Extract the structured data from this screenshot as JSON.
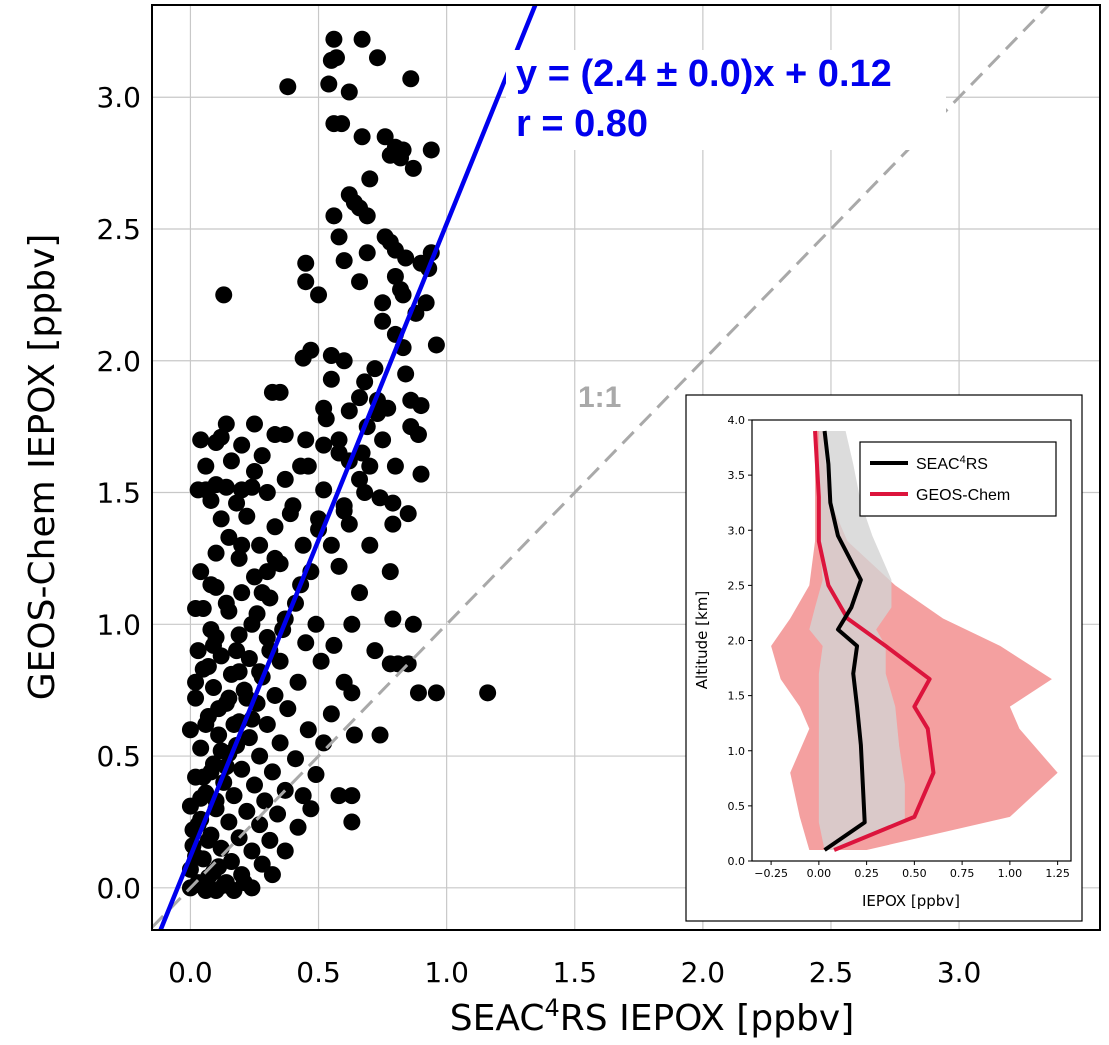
{
  "chart_data": [
    {
      "type": "scatter",
      "xlabel_main": "SEAC",
      "xlabel_sup": "4",
      "xlabel_rest": "RS IEPOX [ppbv]",
      "ylabel": "GEOS-Chem IEPOX [ppbv]",
      "xlim": [
        -0.15,
        3.55
      ],
      "ylim": [
        -0.16,
        3.35
      ],
      "xticks": [
        "0.0",
        "0.5",
        "1.0",
        "1.5",
        "2.0",
        "2.5",
        "3.0"
      ],
      "yticks": [
        "0.0",
        "0.5",
        "1.0",
        "1.5",
        "2.0",
        "2.5",
        "3.0"
      ],
      "grid": true,
      "fit": {
        "slope": 2.4,
        "intercept": 0.12,
        "label": "y = (2.4 ± 0.0)x + 0.12",
        "r_label": "r = 0.80",
        "color": "#0000ee"
      },
      "one_to_one": {
        "label": "1:1",
        "color": "#a9a9a9"
      },
      "marker_color": "#000000",
      "points": [
        [
          0.56,
          3.22
        ],
        [
          0.67,
          3.22
        ],
        [
          0.55,
          3.14
        ],
        [
          0.57,
          3.15
        ],
        [
          0.73,
          3.15
        ],
        [
          0.38,
          3.04
        ],
        [
          0.54,
          3.05
        ],
        [
          0.62,
          3.02
        ],
        [
          0.86,
          3.07
        ],
        [
          0.56,
          2.9
        ],
        [
          0.59,
          2.9
        ],
        [
          0.67,
          2.85
        ],
        [
          0.76,
          2.85
        ],
        [
          0.8,
          2.81
        ],
        [
          0.83,
          2.8
        ],
        [
          0.94,
          2.8
        ],
        [
          0.78,
          2.78
        ],
        [
          0.82,
          2.77
        ],
        [
          0.87,
          2.73
        ],
        [
          0.7,
          2.69
        ],
        [
          0.62,
          2.63
        ],
        [
          0.64,
          2.6
        ],
        [
          0.66,
          2.58
        ],
        [
          0.56,
          2.55
        ],
        [
          0.69,
          2.55
        ],
        [
          0.76,
          2.47
        ],
        [
          0.58,
          2.47
        ],
        [
          0.78,
          2.45
        ],
        [
          0.8,
          2.42
        ],
        [
          0.69,
          2.41
        ],
        [
          0.94,
          2.41
        ],
        [
          0.84,
          2.39
        ],
        [
          0.45,
          2.37
        ],
        [
          0.6,
          2.38
        ],
        [
          0.9,
          2.37
        ],
        [
          0.93,
          2.35
        ],
        [
          0.8,
          2.32
        ],
        [
          0.45,
          2.3
        ],
        [
          0.66,
          2.3
        ],
        [
          0.82,
          2.27
        ],
        [
          0.13,
          2.25
        ],
        [
          0.5,
          2.25
        ],
        [
          0.75,
          2.22
        ],
        [
          0.83,
          2.25
        ],
        [
          0.92,
          2.22
        ],
        [
          0.88,
          2.18
        ],
        [
          0.75,
          2.15
        ],
        [
          0.8,
          2.1
        ],
        [
          0.96,
          2.06
        ],
        [
          0.47,
          2.04
        ],
        [
          0.55,
          2.02
        ],
        [
          0.83,
          2.05
        ],
        [
          0.44,
          2.01
        ],
        [
          0.6,
          2.0
        ],
        [
          0.72,
          1.97
        ],
        [
          0.84,
          1.95
        ],
        [
          0.55,
          1.93
        ],
        [
          0.68,
          1.92
        ],
        [
          0.32,
          1.88
        ],
        [
          0.35,
          1.88
        ],
        [
          0.66,
          1.86
        ],
        [
          0.86,
          1.85
        ],
        [
          0.9,
          1.83
        ],
        [
          0.52,
          1.82
        ],
        [
          0.77,
          1.82
        ],
        [
          0.62,
          1.81
        ],
        [
          0.73,
          1.8
        ],
        [
          0.86,
          1.75
        ],
        [
          0.25,
          1.76
        ],
        [
          0.33,
          1.72
        ],
        [
          0.45,
          1.7
        ],
        [
          0.58,
          1.7
        ],
        [
          0.75,
          1.7
        ],
        [
          0.89,
          1.72
        ],
        [
          0.2,
          1.68
        ],
        [
          0.52,
          1.68
        ],
        [
          0.67,
          1.65
        ],
        [
          0.04,
          1.7
        ],
        [
          0.1,
          1.69
        ],
        [
          0.12,
          1.71
        ],
        [
          0.14,
          1.76
        ],
        [
          0.28,
          1.64
        ],
        [
          0.43,
          1.6
        ],
        [
          0.62,
          1.62
        ],
        [
          0.8,
          1.6
        ],
        [
          0.9,
          1.57
        ],
        [
          0.06,
          1.6
        ],
        [
          0.16,
          1.62
        ],
        [
          0.25,
          1.58
        ],
        [
          0.37,
          1.55
        ],
        [
          0.03,
          1.51
        ],
        [
          0.06,
          1.51
        ],
        [
          0.1,
          1.53
        ],
        [
          0.14,
          1.52
        ],
        [
          0.2,
          1.51
        ],
        [
          0.3,
          1.5
        ],
        [
          0.52,
          1.51
        ],
        [
          0.68,
          1.5
        ],
        [
          0.79,
          1.46
        ],
        [
          0.08,
          1.47
        ],
        [
          0.18,
          1.46
        ],
        [
          0.4,
          1.45
        ],
        [
          0.6,
          1.43
        ],
        [
          0.85,
          1.42
        ],
        [
          0.12,
          1.4
        ],
        [
          0.22,
          1.41
        ],
        [
          0.33,
          1.37
        ],
        [
          0.5,
          1.36
        ],
        [
          0.15,
          1.33
        ],
        [
          0.27,
          1.3
        ],
        [
          0.44,
          1.3
        ],
        [
          0.7,
          1.3
        ],
        [
          0.1,
          1.27
        ],
        [
          0.19,
          1.25
        ],
        [
          0.35,
          1.23
        ],
        [
          0.58,
          1.22
        ],
        [
          0.78,
          1.2
        ],
        [
          0.04,
          1.2
        ],
        [
          0.25,
          1.18
        ],
        [
          0.43,
          1.15
        ],
        [
          0.66,
          1.12
        ],
        [
          0.1,
          1.14
        ],
        [
          0.2,
          1.12
        ],
        [
          0.31,
          1.1
        ],
        [
          0.02,
          1.06
        ],
        [
          0.05,
          1.06
        ],
        [
          0.15,
          1.05
        ],
        [
          0.26,
          1.04
        ],
        [
          0.37,
          1.02
        ],
        [
          0.49,
          1.0
        ],
        [
          0.63,
          1.0
        ],
        [
          0.79,
          1.02
        ],
        [
          0.87,
          1.0
        ],
        [
          0.08,
          0.98
        ],
        [
          0.19,
          0.96
        ],
        [
          0.3,
          0.95
        ],
        [
          0.45,
          0.93
        ],
        [
          0.56,
          0.92
        ],
        [
          0.72,
          0.9
        ],
        [
          0.03,
          0.9
        ],
        [
          0.12,
          0.88
        ],
        [
          0.23,
          0.87
        ],
        [
          0.35,
          0.86
        ],
        [
          0.51,
          0.86
        ],
        [
          0.78,
          0.85
        ],
        [
          0.81,
          0.85
        ],
        [
          0.85,
          0.85
        ],
        [
          0.05,
          0.83
        ],
        [
          0.16,
          0.81
        ],
        [
          0.28,
          0.8
        ],
        [
          0.42,
          0.78
        ],
        [
          0.6,
          0.78
        ],
        [
          0.09,
          0.76
        ],
        [
          0.21,
          0.75
        ],
        [
          0.33,
          0.73
        ],
        [
          0.63,
          0.74
        ],
        [
          0.02,
          0.72
        ],
        [
          0.14,
          0.7
        ],
        [
          0.26,
          0.7
        ],
        [
          0.38,
          0.68
        ],
        [
          0.55,
          0.66
        ],
        [
          0.89,
          0.74
        ],
        [
          0.96,
          0.74
        ],
        [
          1.16,
          0.74
        ],
        [
          0.07,
          0.65
        ],
        [
          0.19,
          0.63
        ],
        [
          0.3,
          0.62
        ],
        [
          0.46,
          0.6
        ],
        [
          0.64,
          0.58
        ],
        [
          0.74,
          0.58
        ],
        [
          0.0,
          0.6
        ],
        [
          0.11,
          0.58
        ],
        [
          0.23,
          0.57
        ],
        [
          0.35,
          0.55
        ],
        [
          0.52,
          0.55
        ],
        [
          0.04,
          0.53
        ],
        [
          0.15,
          0.51
        ],
        [
          0.27,
          0.5
        ],
        [
          0.41,
          0.49
        ],
        [
          0.09,
          0.47
        ],
        [
          0.2,
          0.45
        ],
        [
          0.32,
          0.44
        ],
        [
          0.49,
          0.43
        ],
        [
          0.02,
          0.42
        ],
        [
          0.13,
          0.4
        ],
        [
          0.25,
          0.39
        ],
        [
          0.37,
          0.37
        ],
        [
          0.06,
          0.36
        ],
        [
          0.17,
          0.35
        ],
        [
          0.29,
          0.33
        ],
        [
          0.44,
          0.35
        ],
        [
          0.58,
          0.35
        ],
        [
          0.63,
          0.35
        ],
        [
          0.0,
          0.31
        ],
        [
          0.1,
          0.3
        ],
        [
          0.22,
          0.29
        ],
        [
          0.34,
          0.28
        ],
        [
          0.47,
          0.3
        ],
        [
          0.04,
          0.26
        ],
        [
          0.15,
          0.25
        ],
        [
          0.27,
          0.24
        ],
        [
          0.42,
          0.23
        ],
        [
          0.63,
          0.25
        ],
        [
          0.08,
          0.2
        ],
        [
          0.19,
          0.19
        ],
        [
          0.31,
          0.18
        ],
        [
          0.01,
          0.16
        ],
        [
          0.12,
          0.15
        ],
        [
          0.24,
          0.14
        ],
        [
          0.37,
          0.14
        ],
        [
          0.05,
          0.11
        ],
        [
          0.16,
          0.1
        ],
        [
          0.28,
          0.09
        ],
        [
          0.0,
          0.07
        ],
        [
          0.09,
          0.06
        ],
        [
          0.2,
          0.05
        ],
        [
          0.32,
          0.05
        ],
        [
          0.03,
          0.02
        ],
        [
          0.13,
          0.01
        ],
        [
          0.24,
          0.0
        ],
        [
          0.06,
          -0.01
        ],
        [
          0.17,
          -0.01
        ],
        [
          0.0,
          0.0
        ],
        [
          0.04,
          0.01
        ],
        [
          0.1,
          -0.01
        ],
        [
          0.14,
          0.02
        ],
        [
          0.21,
          0.02
        ],
        [
          0.07,
          0.04
        ],
        [
          0.11,
          0.08
        ],
        [
          0.02,
          0.12
        ],
        [
          0.07,
          0.18
        ],
        [
          0.03,
          0.24
        ],
        [
          0.1,
          0.33
        ],
        [
          0.05,
          0.42
        ],
        [
          0.14,
          0.46
        ],
        [
          0.18,
          0.54
        ],
        [
          0.06,
          0.62
        ],
        [
          0.11,
          0.68
        ],
        [
          0.24,
          0.64
        ],
        [
          0.02,
          0.78
        ],
        [
          0.07,
          0.84
        ],
        [
          0.18,
          0.9
        ],
        [
          0.1,
          0.95
        ],
        [
          0.24,
          1.0
        ],
        [
          0.14,
          1.08
        ],
        [
          0.08,
          1.15
        ],
        [
          0.3,
          1.2
        ],
        [
          0.2,
          1.3
        ],
        [
          0.39,
          1.42
        ],
        [
          0.24,
          1.52
        ],
        [
          0.46,
          1.6
        ],
        [
          0.37,
          1.72
        ],
        [
          0.53,
          1.78
        ],
        [
          0.58,
          1.65
        ],
        [
          0.66,
          1.55
        ],
        [
          0.7,
          1.6
        ],
        [
          0.73,
          1.85
        ],
        [
          0.69,
          1.75
        ],
        [
          0.6,
          1.45
        ],
        [
          0.55,
          1.3
        ],
        [
          0.47,
          1.2
        ],
        [
          0.41,
          1.08
        ],
        [
          0.36,
          0.98
        ],
        [
          0.31,
          0.9
        ],
        [
          0.27,
          0.82
        ],
        [
          0.22,
          0.72
        ],
        [
          0.17,
          0.62
        ],
        [
          0.12,
          0.52
        ],
        [
          0.08,
          0.44
        ],
        [
          0.04,
          0.34
        ],
        [
          0.01,
          0.22
        ],
        [
          0.15,
          0.72
        ],
        [
          0.19,
          0.82
        ],
        [
          0.09,
          0.92
        ],
        [
          0.28,
          1.12
        ],
        [
          0.33,
          1.25
        ],
        [
          0.5,
          1.4
        ],
        [
          0.62,
          1.38
        ],
        [
          0.74,
          1.48
        ],
        [
          0.79,
          1.38
        ]
      ]
    },
    {
      "type": "area",
      "title": "",
      "xlabel": "IEPOX [ppbv]",
      "ylabel": "Altitude [km]",
      "xlim": [
        -0.35,
        1.32
      ],
      "ylim": [
        0.0,
        4.0
      ],
      "xticks": [
        "−0.25",
        "0.00",
        "0.25",
        "0.50",
        "0.75",
        "1.00",
        "1.25"
      ],
      "yticks": [
        "0.0",
        "0.5",
        "1.0",
        "1.5",
        "2.0",
        "2.5",
        "3.0",
        "3.5",
        "4.0"
      ],
      "legend_position": "top-right",
      "series": [
        {
          "name_main": "SEAC",
          "name_sup": "4",
          "name_rest": "RS",
          "color": "#000000",
          "band_color": "#d3d3d3",
          "altitude": [
            0.1,
            0.35,
            0.7,
            1.05,
            1.4,
            1.7,
            1.95,
            2.1,
            2.3,
            2.55,
            2.95,
            3.25,
            3.6,
            3.9
          ],
          "mean": [
            0.03,
            0.24,
            0.23,
            0.22,
            0.2,
            0.18,
            0.2,
            0.1,
            0.17,
            0.22,
            0.1,
            0.06,
            0.05,
            0.03
          ],
          "low": [
            0.03,
            0.0,
            0.0,
            0.0,
            0.0,
            0.0,
            0.02,
            -0.05,
            -0.02,
            0.02,
            0.0,
            0.0,
            0.0,
            0.0
          ],
          "high": [
            0.1,
            0.45,
            0.45,
            0.42,
            0.4,
            0.35,
            0.35,
            0.3,
            0.38,
            0.38,
            0.28,
            0.22,
            0.18,
            0.14
          ]
        },
        {
          "name": "GEOS-Chem",
          "color": "#dc143c",
          "band_color": "#f08080",
          "altitude": [
            0.1,
            0.4,
            0.8,
            1.2,
            1.4,
            1.65,
            1.95,
            2.2,
            2.5,
            2.9,
            3.3,
            3.9
          ],
          "mean": [
            0.08,
            0.5,
            0.6,
            0.57,
            0.5,
            0.58,
            0.35,
            0.15,
            0.05,
            0.0,
            0.0,
            -0.02
          ],
          "low": [
            -0.05,
            -0.1,
            -0.15,
            -0.05,
            -0.1,
            -0.2,
            -0.25,
            -0.15,
            -0.05,
            -0.02,
            -0.02,
            -0.02
          ],
          "high": [
            0.25,
            1.0,
            1.25,
            1.05,
            1.0,
            1.22,
            0.95,
            0.65,
            0.4,
            0.15,
            0.05,
            0.02
          ]
        }
      ]
    }
  ]
}
